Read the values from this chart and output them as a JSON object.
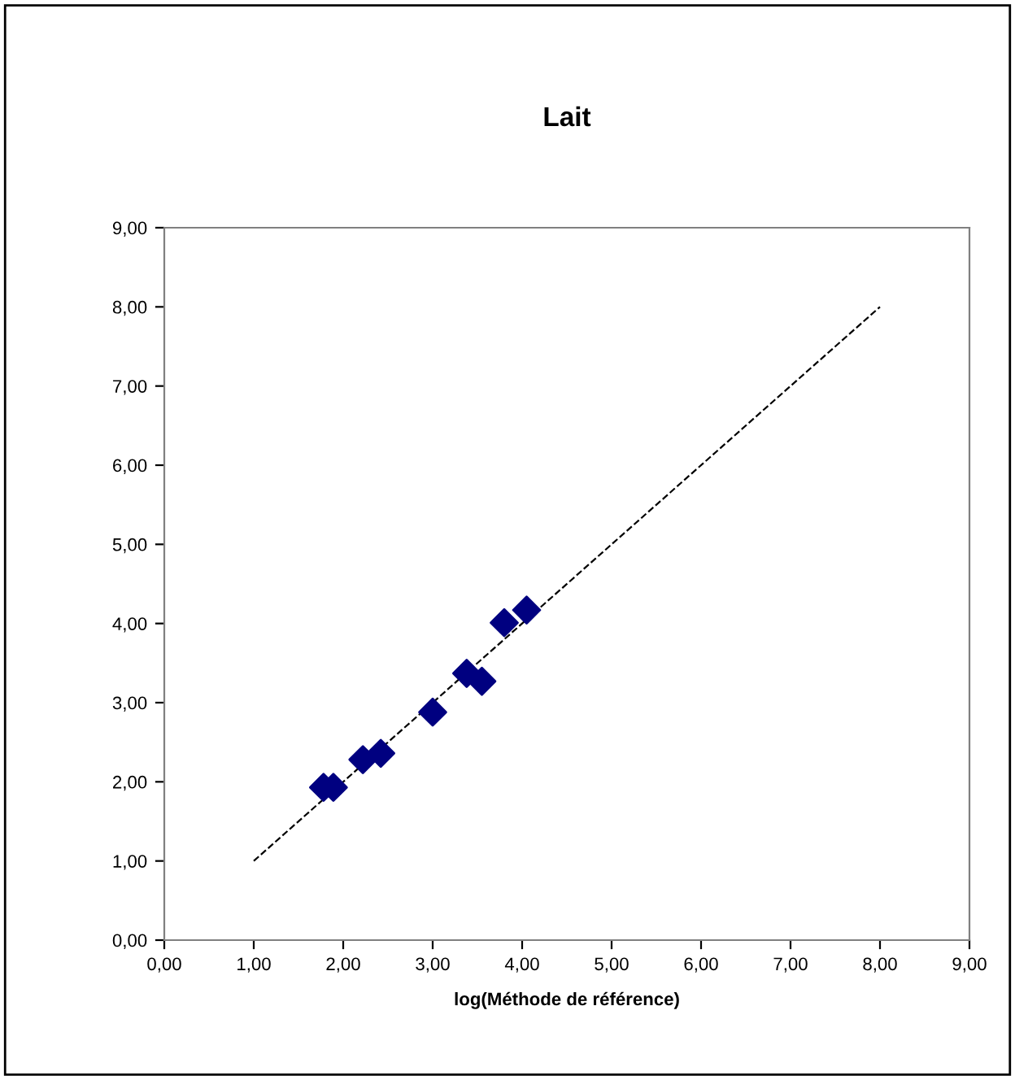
{
  "chart_data": {
    "type": "scatter",
    "title": "Lait",
    "xlabel": "log(Méthode de référence)",
    "xlim": [
      0,
      9
    ],
    "ylim": [
      0,
      9
    ],
    "xticks": [
      {
        "value": 0,
        "label": "0,00"
      },
      {
        "value": 1,
        "label": "1,00"
      },
      {
        "value": 2,
        "label": "2,00"
      },
      {
        "value": 3,
        "label": "3,00"
      },
      {
        "value": 4,
        "label": "4,00"
      },
      {
        "value": 5,
        "label": "5,00"
      },
      {
        "value": 6,
        "label": "6,00"
      },
      {
        "value": 7,
        "label": "7,00"
      },
      {
        "value": 8,
        "label": "8,00"
      },
      {
        "value": 9,
        "label": "9,00"
      }
    ],
    "yticks": [
      {
        "value": 0,
        "label": "0,00"
      },
      {
        "value": 1,
        "label": "1,00"
      },
      {
        "value": 2,
        "label": "2,00"
      },
      {
        "value": 3,
        "label": "3,00"
      },
      {
        "value": 4,
        "label": "4,00"
      },
      {
        "value": 5,
        "label": "5,00"
      },
      {
        "value": 6,
        "label": "6,00"
      },
      {
        "value": 7,
        "label": "7,00"
      },
      {
        "value": 8,
        "label": "8,00"
      },
      {
        "value": 9,
        "label": "9,00"
      }
    ],
    "marker": "diamond",
    "grid": false,
    "legend": false,
    "series": [
      {
        "color": "#000080",
        "x": [
          1.78,
          1.89,
          2.22,
          2.42,
          3.0,
          3.38,
          3.55,
          3.8,
          4.05
        ],
        "values": [
          1.93,
          1.93,
          2.28,
          2.36,
          2.88,
          3.37,
          3.27,
          4.01,
          4.17
        ]
      },
      {
        "type": "line",
        "color": "#000000",
        "line_style": "dashed",
        "marker": "none",
        "x": [
          1,
          8
        ],
        "values": [
          1,
          8
        ]
      }
    ]
  }
}
